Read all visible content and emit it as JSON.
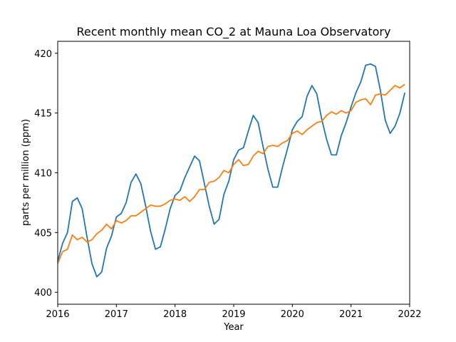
{
  "chart_data": {
    "type": "line",
    "title": "Recent monthly mean CO_2 at Mauna Loa Observatory",
    "xlabel": "Year",
    "ylabel": "parts per million (ppm)",
    "xlim": [
      2016,
      2022
    ],
    "ylim": [
      399,
      421
    ],
    "x_ticks": [
      2016,
      2017,
      2018,
      2019,
      2020,
      2021,
      2022
    ],
    "x_tick_labels": [
      "2016",
      "2017",
      "2018",
      "2019",
      "2020",
      "2021",
      "2022"
    ],
    "y_ticks": [
      400,
      405,
      410,
      415,
      420
    ],
    "y_tick_labels": [
      "400",
      "405",
      "410",
      "415",
      "420"
    ],
    "grid": false,
    "x_start": 2016.0,
    "x_step": 0.08333333,
    "series": [
      {
        "color": "#1f77b4",
        "values": [
          402.6,
          404.1,
          405.0,
          407.6,
          407.9,
          407.0,
          404.6,
          402.4,
          401.3,
          401.7,
          403.7,
          404.7,
          406.3,
          406.6,
          407.5,
          409.2,
          409.9,
          409.1,
          407.2,
          405.1,
          403.6,
          403.8,
          405.3,
          407.0,
          408.1,
          408.5,
          409.6,
          410.5,
          411.4,
          411.0,
          409.1,
          407.2,
          405.7,
          406.1,
          408.2,
          409.3,
          411.1,
          411.9,
          412.1,
          413.5,
          414.8,
          414.2,
          412.2,
          410.3,
          408.8,
          408.8,
          410.5,
          412.0,
          413.6,
          414.3,
          414.7,
          416.4,
          417.3,
          416.6,
          414.5,
          412.8,
          411.5,
          411.5,
          413.1,
          414.2,
          415.5,
          416.7,
          417.6,
          419.0,
          419.1,
          418.9,
          416.9,
          414.4,
          413.3,
          413.9,
          415.0,
          416.7
        ]
      },
      {
        "color": "#ff7f0e",
        "values": [
          402.4,
          403.4,
          403.6,
          404.8,
          404.4,
          404.6,
          404.2,
          404.4,
          404.9,
          405.2,
          405.7,
          405.3,
          406.0,
          405.8,
          406.0,
          406.4,
          406.4,
          406.7,
          407.0,
          407.3,
          407.2,
          407.2,
          407.4,
          407.7,
          407.8,
          407.7,
          408.0,
          407.6,
          408.0,
          408.6,
          408.6,
          409.2,
          409.3,
          409.6,
          410.2,
          410.0,
          410.7,
          411.1,
          410.6,
          410.7,
          411.4,
          411.8,
          411.6,
          412.2,
          412.3,
          412.2,
          412.5,
          412.7,
          413.3,
          413.5,
          413.2,
          413.6,
          413.9,
          414.2,
          414.3,
          414.8,
          415.1,
          414.9,
          415.2,
          415.0,
          415.2,
          415.9,
          416.1,
          416.2,
          415.7,
          416.5,
          416.6,
          416.5,
          416.9,
          417.3,
          417.1,
          417.4
        ]
      }
    ],
    "colors": {
      "axes": "#000000",
      "background": "#ffffff"
    }
  }
}
